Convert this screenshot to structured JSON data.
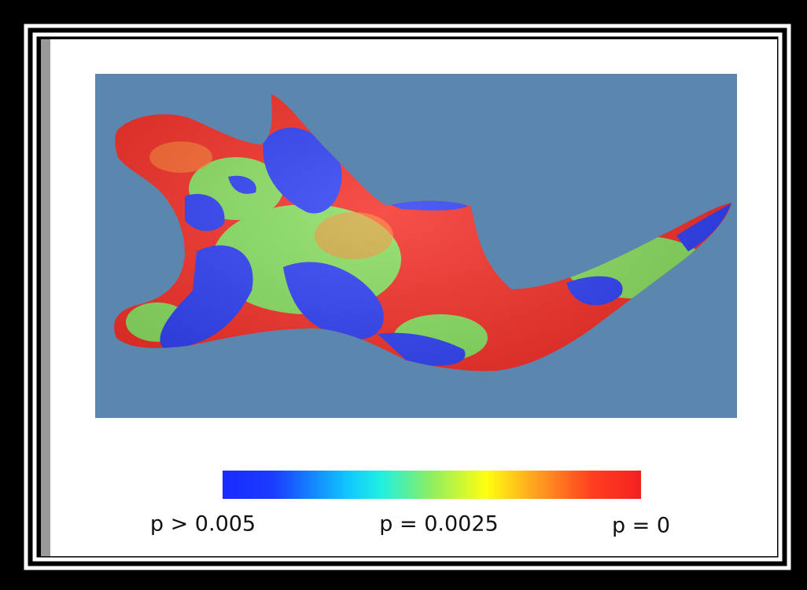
{
  "legend": {
    "labels": [
      "p > 0.005",
      "p = 0.0025",
      "p = 0"
    ]
  }
}
